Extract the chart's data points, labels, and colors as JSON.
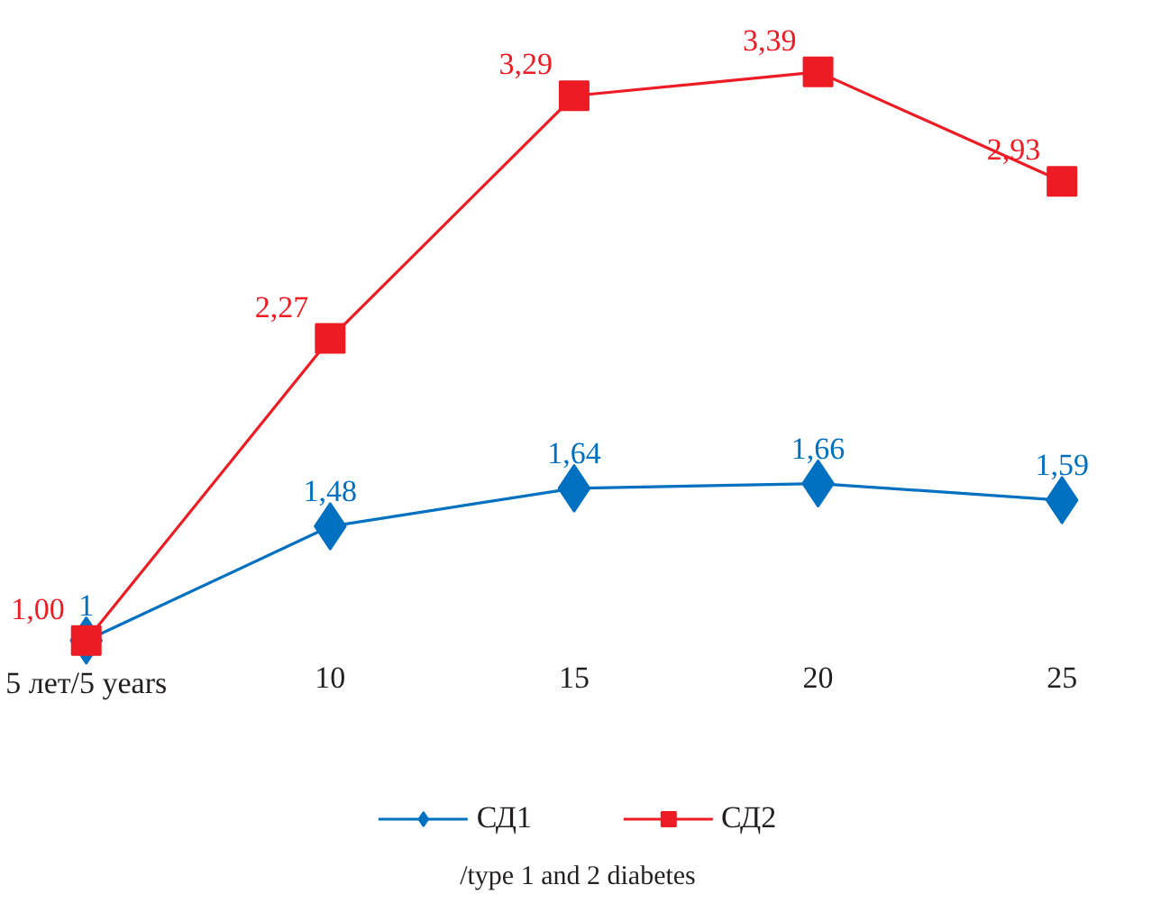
{
  "chart_data": {
    "type": "line",
    "categories": [
      "5 лет/5 years",
      "10",
      "15",
      "20",
      "25"
    ],
    "series": [
      {
        "name": "СД1",
        "color": "#0070c0",
        "marker": "diamond",
        "values": [
          1,
          1.48,
          1.64,
          1.66,
          1.59
        ],
        "value_labels": [
          "1",
          "1,48",
          "1,64",
          "1,66",
          "1,59"
        ]
      },
      {
        "name": "СД2",
        "color": "#ed1c24",
        "marker": "square",
        "values": [
          1.0,
          2.27,
          3.29,
          3.39,
          2.93
        ],
        "value_labels": [
          "1,00",
          "2,27",
          "3,29",
          "3,39",
          "2,93"
        ]
      }
    ],
    "annotations": [
      "/type 1 and 2 diabetes"
    ],
    "legend": "bottom",
    "line_style": "solid"
  }
}
